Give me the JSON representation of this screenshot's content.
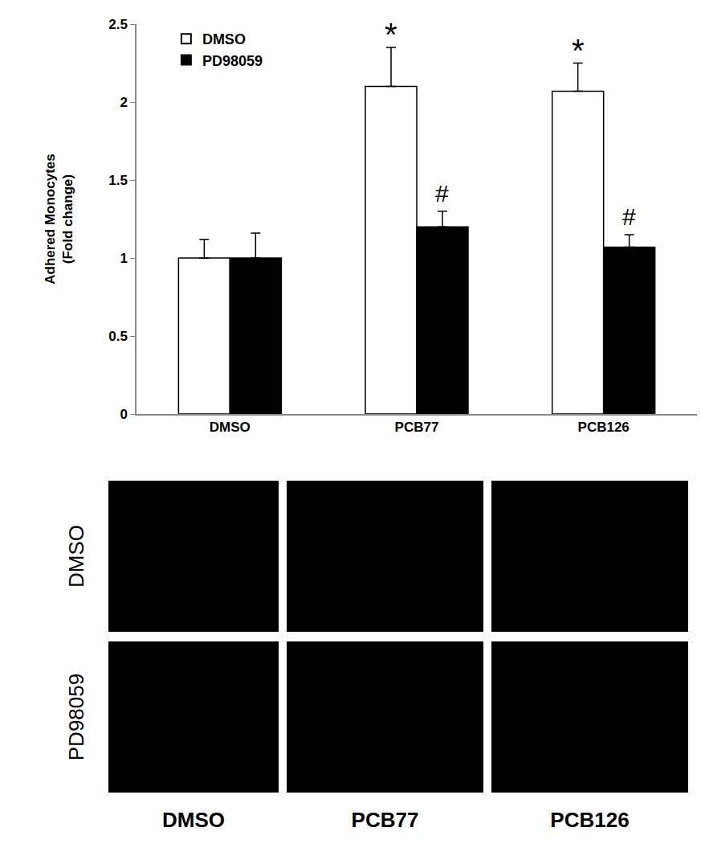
{
  "chart_data": {
    "type": "bar",
    "y_label": "Adhered Monocytes\n(Fold change)",
    "categories": [
      "DMSO",
      "PCB77",
      "PCB126"
    ],
    "series": [
      {
        "name": "DMSO",
        "color": "#ffffff",
        "values": [
          1.0,
          2.1,
          2.07
        ],
        "error": [
          0.12,
          0.25,
          0.18
        ]
      },
      {
        "name": "PD98059",
        "color": "#000000",
        "values": [
          1.0,
          1.2,
          1.07
        ],
        "error": [
          0.16,
          0.1,
          0.08
        ]
      }
    ],
    "annotations": [
      {
        "text": "*",
        "category": "PCB77",
        "series": "DMSO"
      },
      {
        "text": "*",
        "category": "PCB126",
        "series": "DMSO"
      },
      {
        "text": "#",
        "category": "PCB77",
        "series": "PD98059"
      },
      {
        "text": "#",
        "category": "PCB126",
        "series": "PD98059"
      }
    ],
    "ylim": [
      0,
      2.5
    ],
    "yticks": [
      0,
      0.5,
      1,
      1.5,
      2,
      2.5
    ],
    "grid": false,
    "legend": "top-left"
  },
  "image_panels": {
    "row_labels": [
      "DMSO",
      "PD98059"
    ],
    "column_labels": [
      "DMSO",
      "PCB77",
      "PCB126"
    ]
  }
}
